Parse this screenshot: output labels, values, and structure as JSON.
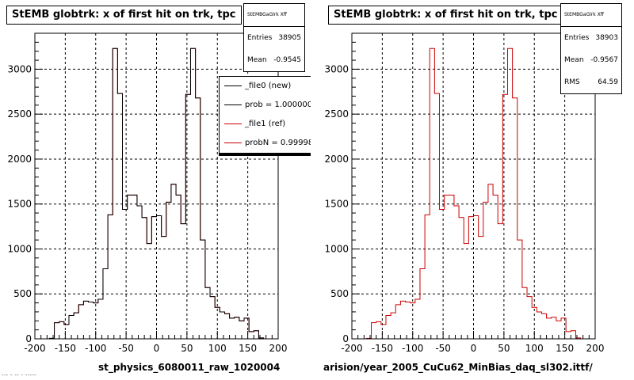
{
  "footer": "--- - -- - -----",
  "chart_data": [
    {
      "type": "bar",
      "title": "StEMB globtrk: x of first hit on trk, tpc",
      "xlabel": "st_physics_6080011_raw_1020004",
      "ylabel": "",
      "xlim": [
        -200,
        200
      ],
      "ylim": [
        0,
        3400
      ],
      "x_ticks": [
        -200,
        -150,
        -100,
        -50,
        0,
        50,
        100,
        150,
        200
      ],
      "y_ticks": [
        0,
        500,
        1000,
        1500,
        2000,
        2500,
        3000
      ],
      "grid": true,
      "bin_width": 8,
      "x_start": -176,
      "series": [
        {
          "name": "_file0 (new)",
          "color": "#000000",
          "values": [
            5,
            180,
            190,
            160,
            260,
            290,
            380,
            420,
            410,
            400,
            440,
            780,
            1380,
            3230,
            2730,
            1440,
            1600,
            1600,
            1480,
            1350,
            1060,
            1360,
            1370,
            1140,
            1520,
            1720,
            1600,
            1280,
            2720,
            3230,
            2680,
            1100,
            570,
            470,
            350,
            300,
            280,
            230,
            240,
            200,
            230,
            80,
            90,
            10
          ]
        },
        {
          "name": "_file1 (ref)",
          "color": "#cc0000",
          "values": [
            5,
            180,
            190,
            160,
            260,
            290,
            380,
            420,
            410,
            400,
            440,
            780,
            1380,
            3230,
            2730,
            1440,
            1600,
            1600,
            1480,
            1350,
            1060,
            1360,
            1370,
            1140,
            1520,
            1720,
            1600,
            1280,
            2720,
            3230,
            2680,
            1100,
            570,
            470,
            350,
            300,
            280,
            230,
            240,
            200,
            230,
            80,
            90,
            10
          ]
        }
      ],
      "stats": {
        "header": "StEMBGaGlrk Xff",
        "entries_label": "Entries",
        "entries": "38905",
        "mean_label": "Mean",
        "mean": "-0.9545"
      },
      "legend": {
        "placement": "top-right",
        "items": [
          {
            "label": "_file0 (new)",
            "color": "#000000"
          },
          {
            "label": "prob = 1.000000",
            "color": "#000000"
          },
          {
            "label": "_file1 (ref)",
            "color": "#cc0000"
          },
          {
            "label": "probN = 0.999980",
            "color": "#cc0000"
          }
        ]
      }
    },
    {
      "type": "bar",
      "title": "StEMB globtrk: x of first hit on trk, tpc",
      "xlabel": "arision/year_2005_CuCu62_MinBias_daq_sl302.ittf/",
      "ylabel": "",
      "xlim": [
        -200,
        200
      ],
      "ylim": [
        0,
        3400
      ],
      "x_ticks": [
        -200,
        -150,
        -100,
        -50,
        0,
        50,
        100,
        150,
        200
      ],
      "y_ticks": [
        0,
        500,
        1000,
        1500,
        2000,
        2500,
        3000
      ],
      "grid": true,
      "bin_width": 8,
      "x_start": -176,
      "series": [
        {
          "name": "",
          "color": "#cc0000",
          "values": [
            5,
            180,
            190,
            160,
            260,
            290,
            380,
            420,
            410,
            400,
            440,
            780,
            1380,
            3230,
            2730,
            1440,
            1600,
            1600,
            1480,
            1350,
            1060,
            1360,
            1370,
            1140,
            1520,
            1720,
            1600,
            1280,
            2720,
            3230,
            2680,
            1100,
            570,
            470,
            350,
            300,
            280,
            230,
            240,
            200,
            230,
            80,
            90,
            10
          ]
        }
      ],
      "stats": {
        "header": "StEMBGaGlrk Xff",
        "entries_label": "Entries",
        "entries": "38903",
        "mean_label": "Mean",
        "mean": "-0.9567",
        "rms_label": "RMS",
        "rms": "64.59"
      }
    }
  ]
}
